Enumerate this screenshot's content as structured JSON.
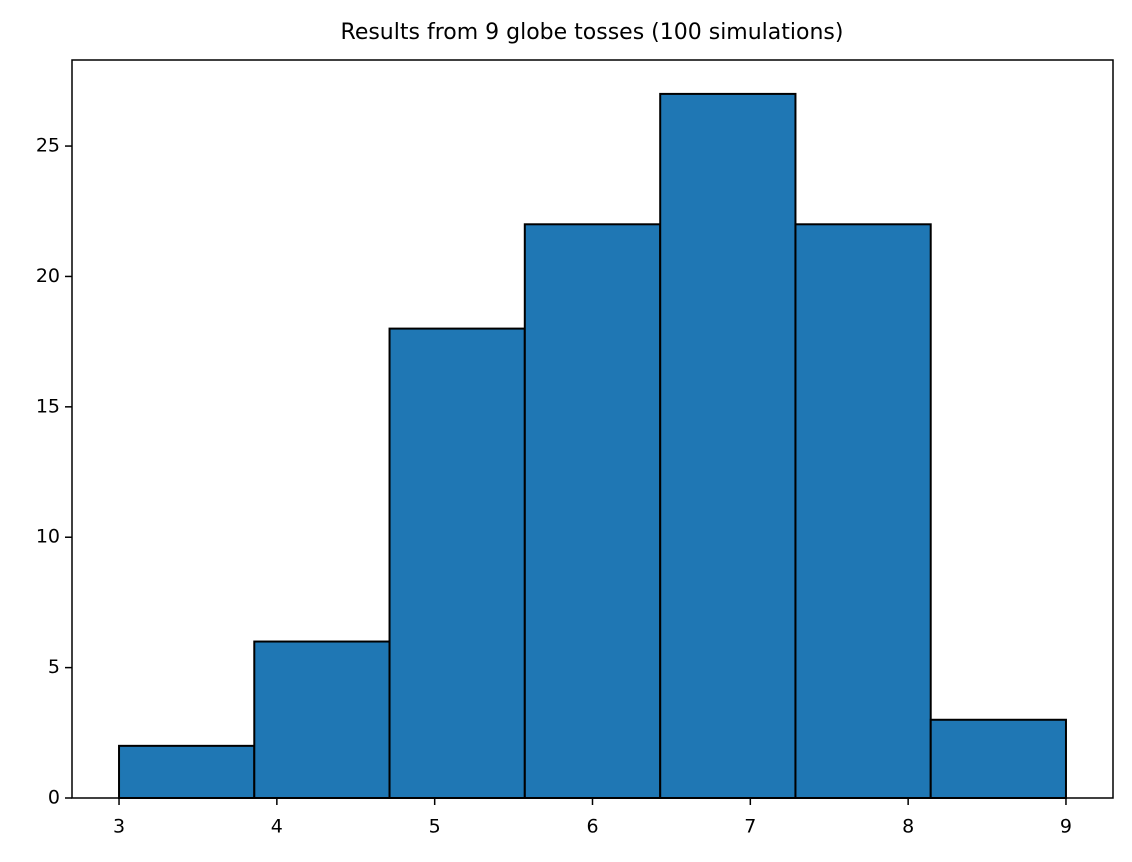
{
  "chart_data": {
    "type": "histogram",
    "title": "Results from 9 globe tosses (100 simulations)",
    "bins": [
      3,
      3.857,
      4.714,
      5.571,
      6.429,
      7.286,
      8.143,
      9
    ],
    "values": [
      2,
      6,
      18,
      22,
      27,
      22,
      3
    ],
    "color": "#1f77b4",
    "edgecolor": "#000000",
    "xlim": [
      2.702,
      9.298
    ],
    "xticks": [
      3,
      4,
      5,
      6,
      7,
      8,
      9
    ],
    "ylim": [
      0,
      28.3
    ],
    "yticks": [
      0,
      5,
      10,
      15,
      20,
      25
    ]
  }
}
